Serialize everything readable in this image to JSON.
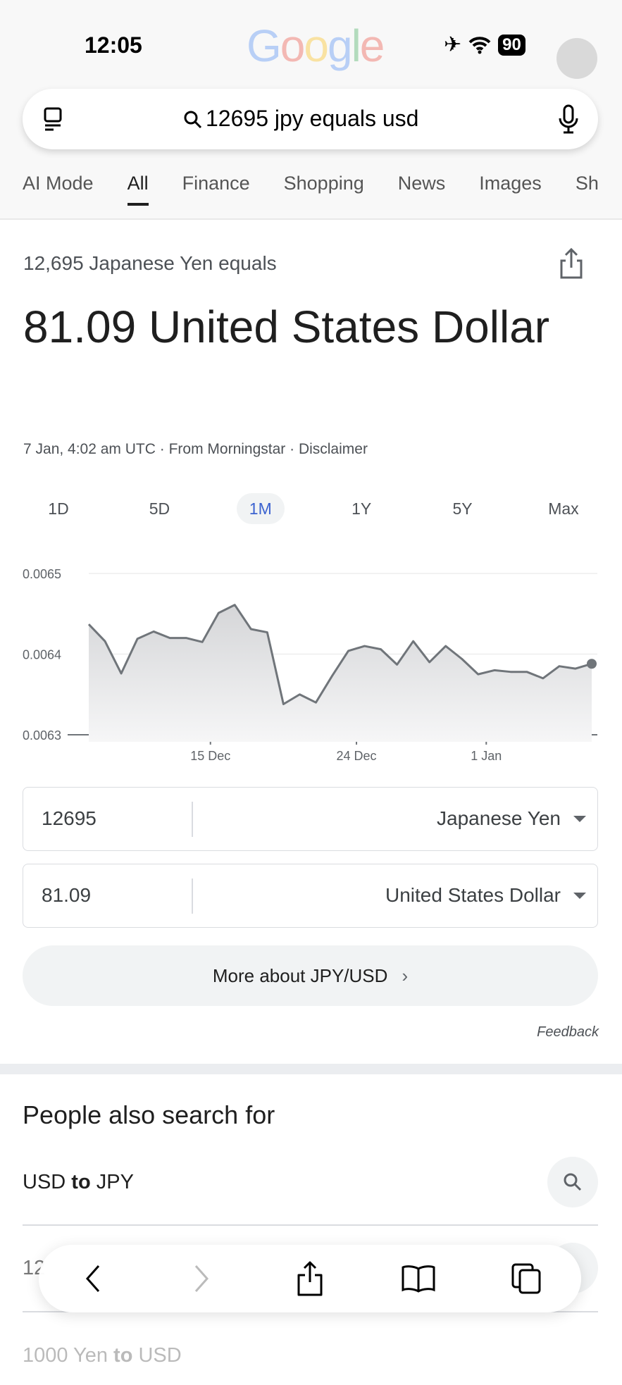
{
  "status": {
    "time": "12:05",
    "battery": "90",
    "logo": "Google"
  },
  "search": {
    "query": "12695 jpy equals usd"
  },
  "tabs": [
    "AI Mode",
    "All",
    "Finance",
    "Shopping",
    "News",
    "Images",
    "Sh"
  ],
  "result": {
    "subtitle": "12,695 Japanese Yen equals",
    "value": "81.09 United States Dollar",
    "source": "7 Jan, 4:02 am UTC · From Morningstar · Disclaimer"
  },
  "ranges": [
    "1D",
    "5D",
    "1M",
    "1Y",
    "5Y",
    "Max"
  ],
  "active_range": "1M",
  "accent": "#3c63d0",
  "chart_data": {
    "type": "area",
    "x": [
      "7 Dec",
      "8 Dec",
      "9 Dec",
      "10 Dec",
      "11 Dec",
      "12 Dec",
      "13 Dec",
      "14 Dec",
      "15 Dec",
      "16 Dec",
      "17 Dec",
      "18 Dec",
      "19 Dec",
      "20 Dec",
      "21 Dec",
      "22 Dec",
      "23 Dec",
      "24 Dec",
      "25 Dec",
      "26 Dec",
      "27 Dec",
      "28 Dec",
      "29 Dec",
      "30 Dec",
      "31 Dec",
      "1 Jan",
      "2 Jan",
      "3 Jan",
      "4 Jan",
      "5 Jan",
      "6 Jan",
      "7 Jan"
    ],
    "values": [
      0.006437,
      0.006416,
      0.006376,
      0.006419,
      0.006428,
      0.00642,
      0.00642,
      0.006415,
      0.006451,
      0.006461,
      0.006431,
      0.006427,
      0.006338,
      0.00635,
      0.00634,
      0.006373,
      0.006404,
      0.00641,
      0.006406,
      0.006387,
      0.006416,
      0.00639,
      0.00641,
      0.006394,
      0.006375,
      0.00638,
      0.006378,
      0.006378,
      0.00637,
      0.006385,
      0.006382,
      0.006388
    ],
    "yticks": [
      "0.0065",
      "0.0064",
      "0.0063"
    ],
    "ylim": [
      0.0063,
      0.0065
    ],
    "xticks": [
      "15 Dec",
      "24 Dec",
      "1 Jan"
    ],
    "grid": true,
    "color": "#70757a"
  },
  "converter": {
    "from_value": "12695",
    "from_unit": "Japanese Yen",
    "to_value": "81.09",
    "to_unit": "United States Dollar"
  },
  "more_label": "More about JPY/USD",
  "feedback": "Feedback",
  "people_also": {
    "title": "People also search for",
    "items": [
      {
        "pre": "USD ",
        "bold": "to",
        "post": " JPY"
      },
      {
        "pre": "12",
        "bold": "",
        "post": ""
      },
      {
        "pre": "1000 Yen ",
        "bold": "to",
        "post": " USD"
      }
    ]
  }
}
